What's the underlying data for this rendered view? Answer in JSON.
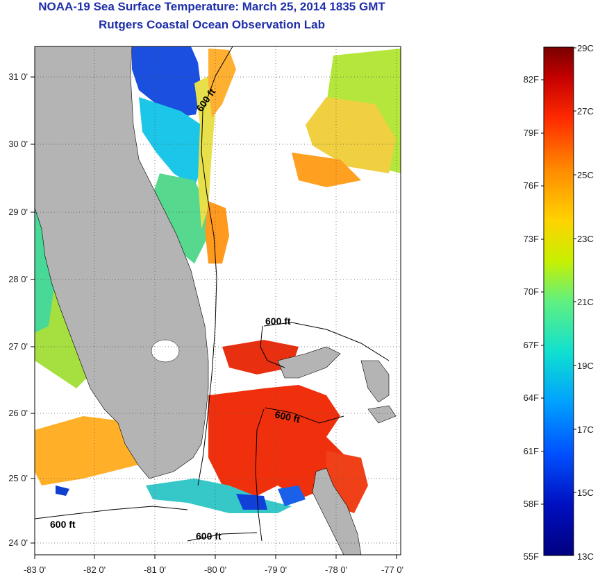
{
  "header": {
    "title": "NOAA-19 Sea Surface Temperature:  March 25, 2014 1835 GMT",
    "subtitle": "Rutgers Coastal Ocean Observation Lab"
  },
  "map": {
    "lat_ticks": [
      "31 0'",
      "30 0'",
      "29 0'",
      "28 0'",
      "27 0'",
      "26 0'",
      "25 0'",
      "24 0'"
    ],
    "lon_ticks": [
      "-83 0'",
      "-82 0'",
      "-81 0'",
      "-80 0'",
      "-79 0'",
      "-78 0'",
      "-77 0'"
    ],
    "contour_labels": [
      "600 ft",
      "600 ft",
      "600 ft",
      "600 ft",
      "600 ft"
    ]
  },
  "colorbar": {
    "fahrenheit": [
      "82F",
      "79F",
      "76F",
      "73F",
      "70F",
      "67F",
      "64F",
      "61F",
      "58F",
      "55F"
    ],
    "celsius": [
      "29C",
      "27C",
      "25C",
      "23C",
      "21C",
      "19C",
      "17C",
      "15C",
      "13C"
    ],
    "colors": [
      "#7a0000",
      "#c40000",
      "#ff2a00",
      "#ff8a00",
      "#ffd200",
      "#c8f000",
      "#60f080",
      "#10e0d0",
      "#00a0ff",
      "#0050ff",
      "#0010c0",
      "#000080"
    ]
  }
}
